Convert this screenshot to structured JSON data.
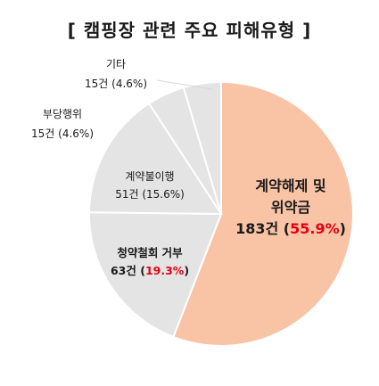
{
  "title": "[ 캠핑장 관련 주요 피해유형 ]",
  "chart_data": {
    "type": "pie",
    "title": "[ 캠핑장 관련 주요 피해유형 ]",
    "unit": "건",
    "slices": [
      {
        "name": "계약해제 및 위약금",
        "name_lines": [
          "계약해제 및",
          "위약금"
        ],
        "count": 183,
        "count_text": "183건",
        "percent": 55.9,
        "percent_text": "55.9%",
        "color": "#f9c3a6"
      },
      {
        "name": "청약철회 거부",
        "name_lines": [
          "청약철회 거부"
        ],
        "count": 63,
        "count_text": "63건",
        "percent": 19.3,
        "percent_text": "19.3%",
        "color": "#e4e4e4"
      },
      {
        "name": "계약불이행",
        "name_lines": [
          "계약불이행"
        ],
        "count": 51,
        "count_text": "51건",
        "percent": 15.6,
        "percent_text": "15.6%",
        "color": "#e4e4e4"
      },
      {
        "name": "부당행위",
        "name_lines": [
          "부당행위"
        ],
        "count": 15,
        "count_text": "15건",
        "percent": 4.6,
        "percent_text": "4.6%",
        "color": "#e4e4e4"
      },
      {
        "name": "기타",
        "name_lines": [
          "기타"
        ],
        "count": 15,
        "count_text": "15건",
        "percent": 4.6,
        "percent_text": "4.6%",
        "color": "#e4e4e4"
      }
    ]
  }
}
